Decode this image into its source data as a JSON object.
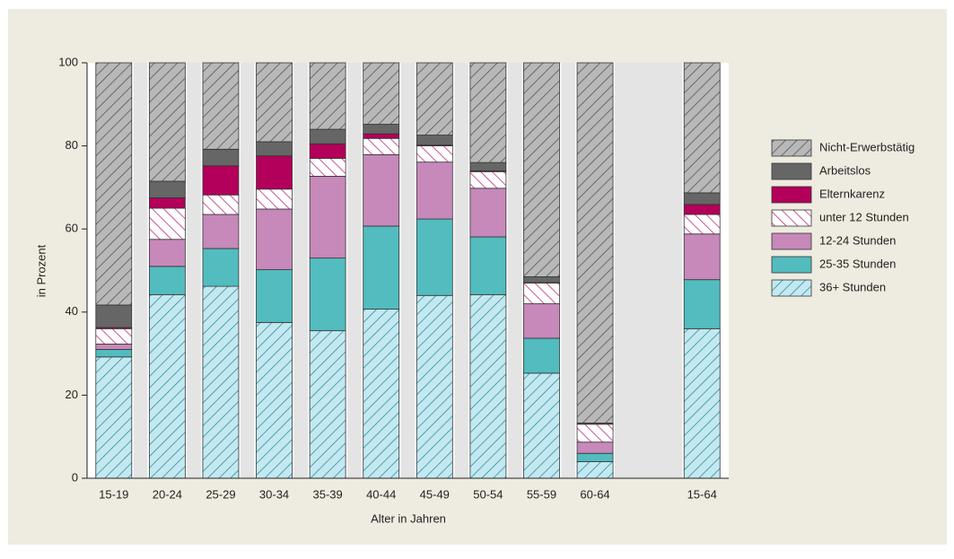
{
  "chart_data": {
    "type": "stacked-bar",
    "categories": [
      "15-19",
      "20-24",
      "25-29",
      "30-34",
      "35-39",
      "40-44",
      "45-49",
      "50-54",
      "55-59",
      "60-64",
      null,
      "15-64"
    ],
    "series": [
      {
        "name": "36+ Stunden",
        "color": "#c4e8f0",
        "hatch": "#2d8fa3",
        "hatch_direction": "/",
        "values": [
          29.2,
          44.2,
          46.2,
          37.5,
          35.5,
          40.7,
          44,
          44.2,
          25.3,
          4,
          null,
          36
        ]
      },
      {
        "name": "25-35 Stunden",
        "color": "#52bcbf",
        "hatch": null,
        "values": [
          1.8,
          6.8,
          9.1,
          12.7,
          17.5,
          20,
          18.4,
          13.9,
          8.4,
          2,
          null,
          11.8
        ]
      },
      {
        "name": "12-24 Stunden",
        "color": "#c788ba",
        "hatch": null,
        "values": [
          1.3,
          6.5,
          8.2,
          14.6,
          19.7,
          17.2,
          13.7,
          11.7,
          8.3,
          2.7,
          null,
          11
        ]
      },
      {
        "name": "unter 12 Stunden",
        "color": "#ffffff",
        "hatch": "#c02c7c",
        "hatch_direction": "\\",
        "values": [
          3.7,
          7.5,
          4.7,
          4.8,
          4.3,
          3.9,
          3.9,
          4,
          5,
          4.3,
          null,
          4.7
        ]
      },
      {
        "name": "Elternkarenz",
        "color": "#b3005a",
        "hatch": null,
        "values": [
          0.3,
          2.5,
          7,
          8,
          3.5,
          1.1,
          0.2,
          0.2,
          0.1,
          0,
          null,
          2.4
        ]
      },
      {
        "name": "Arbeitslos",
        "color": "#666666",
        "hatch": null,
        "values": [
          5.4,
          4,
          4,
          3.4,
          3.5,
          2.3,
          2.4,
          2,
          1.4,
          0.3,
          null,
          2.8
        ]
      },
      {
        "name": "Nicht-Erwerbstätig",
        "color": "#b8b8b8",
        "hatch": "#555555",
        "hatch_direction": "/",
        "values": [
          58.3,
          28.5,
          20.8,
          19,
          16,
          14.8,
          17.4,
          24,
          51.5,
          86.7,
          null,
          31.3
        ]
      }
    ],
    "ylabel": "in Prozent",
    "xlabel": "Alter in Jahren",
    "ylim": [
      0,
      100
    ],
    "yticks": [
      0,
      20,
      40,
      60,
      80,
      100
    ],
    "legend": "right"
  }
}
